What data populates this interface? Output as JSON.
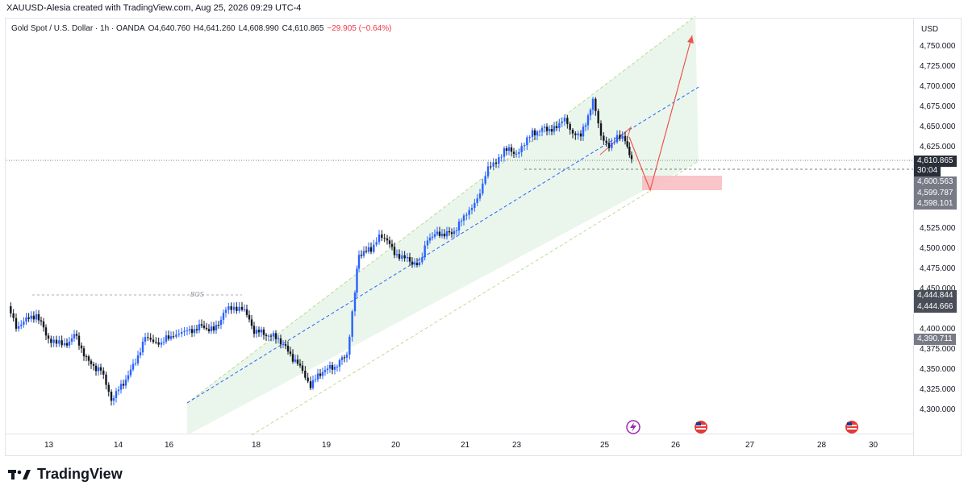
{
  "header": {
    "caption": "XAUUSD-Alesia created with TradingView.com, Aug 25, 2026 09:29 UTC-4"
  },
  "legend": {
    "symbol": "Gold Spot / U.S. Dollar · 1h · OANDA",
    "open": "O4,640.760",
    "high": "H4,641.260",
    "low": "L4,608.990",
    "close": "C4,610.865",
    "change": "−29.905 (−0.64%)"
  },
  "price_axis": {
    "currency": "USD",
    "ticks": [
      "4,750.000",
      "4,725.000",
      "4,700.000",
      "4,675.000",
      "4,650.000",
      "4,625.000",
      "4,525.000",
      "4,500.000",
      "4,475.000",
      "4,450.000",
      "4,400.000",
      "4,375.000",
      "4,350.000",
      "4,325.000",
      "4,300.000"
    ],
    "tags": [
      {
        "text": "4,610.865",
        "style": "dark"
      },
      {
        "text": "30:04",
        "style": "dark"
      },
      {
        "text": "4,600.563",
        "style": "gray"
      },
      {
        "text": "4,599.787",
        "style": "gray"
      },
      {
        "text": "4,598.101",
        "style": "gray"
      },
      {
        "text": "4,444.844",
        "style": "dark2"
      },
      {
        "text": "4,444.666",
        "style": "dark2"
      },
      {
        "text": "4,390.711",
        "style": "gray"
      }
    ]
  },
  "time_axis": {
    "ticks": [
      "13",
      "14",
      "16",
      "18",
      "19",
      "20",
      "21",
      "23",
      "25",
      "26",
      "27",
      "28",
      "30"
    ]
  },
  "annotations": {
    "bos_label": "BOS"
  },
  "brand": {
    "name": "TradingView"
  },
  "colors": {
    "up": "#2962ff",
    "down": "#131722",
    "channel_fill": "#e8f5e9",
    "zone": "#f8bbc0",
    "arrow": "#ef5350"
  },
  "icons": [
    "lightning-event-icon",
    "us-flag-event-icon",
    "us-flag-event-icon"
  ]
}
